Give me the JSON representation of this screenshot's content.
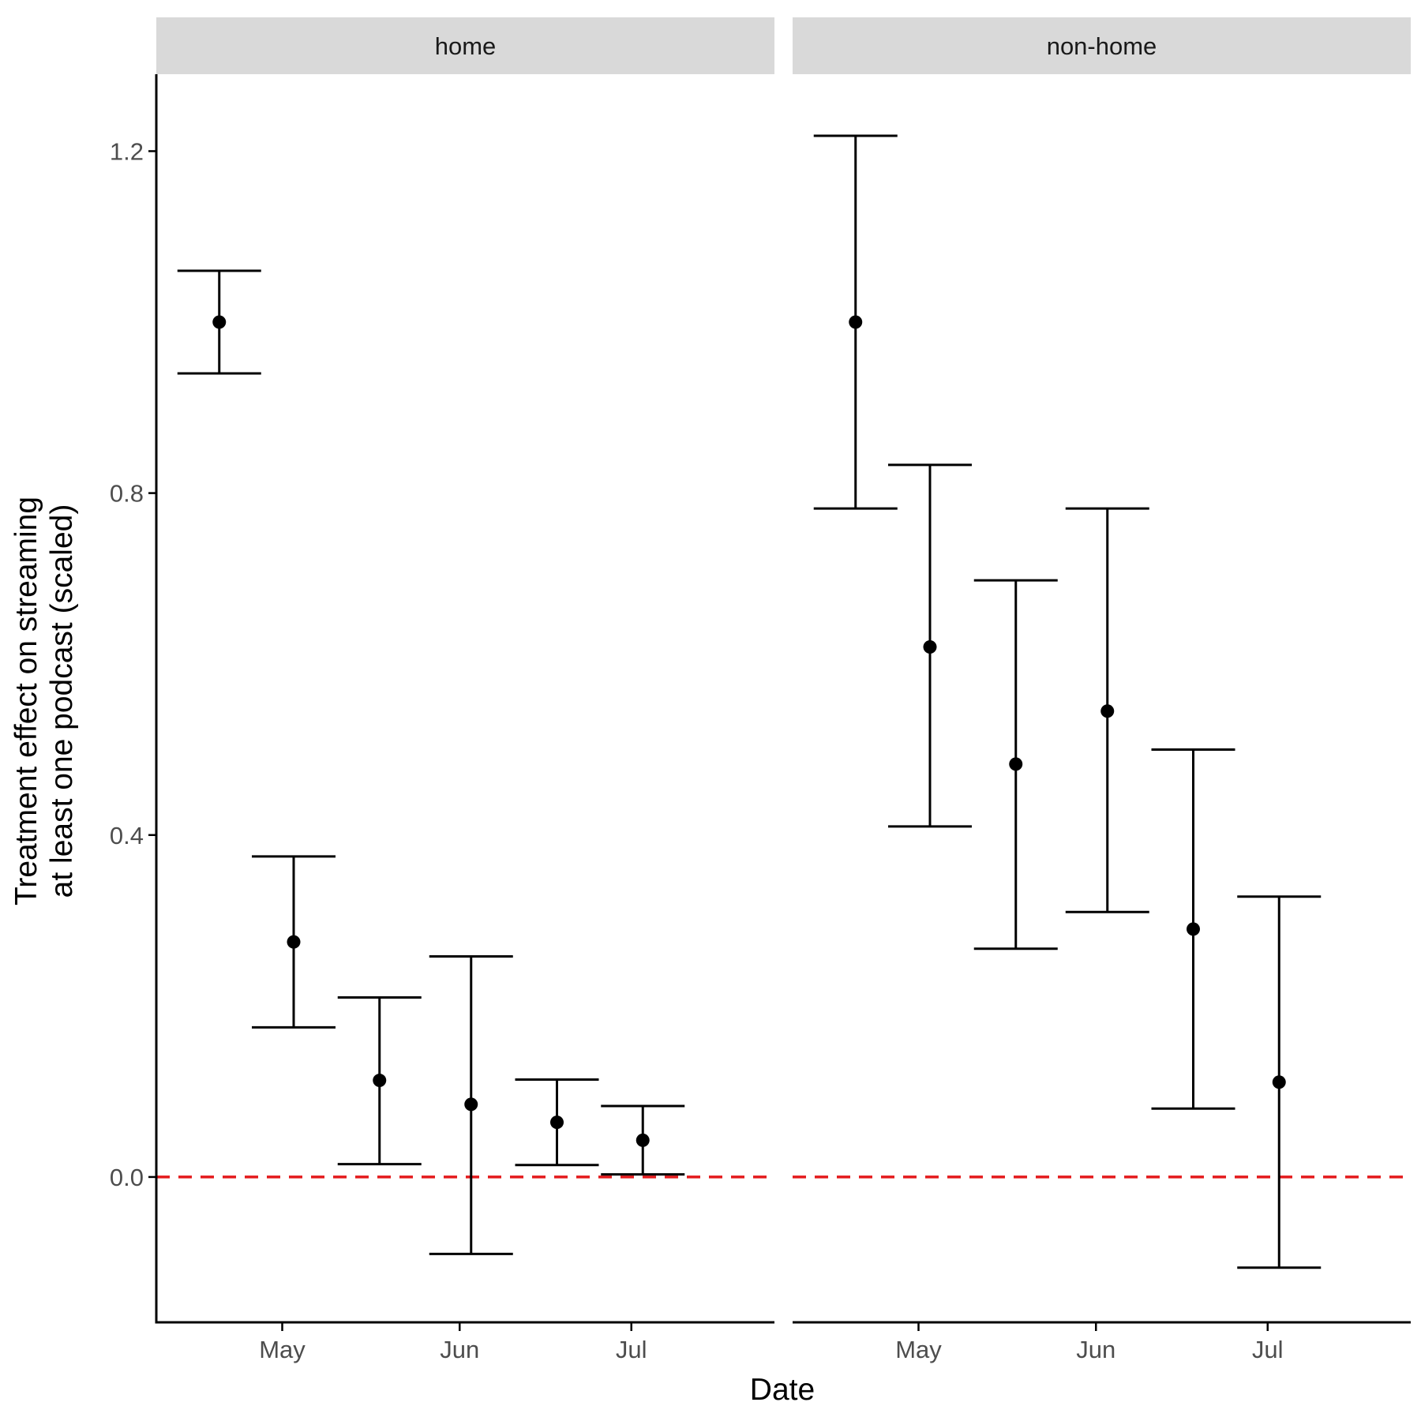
{
  "chart_data": {
    "type": "errorbar",
    "xlabel": "Date",
    "ylabel_lines": [
      "Treatment effect on streaming",
      "at least one podcast (scaled)"
    ],
    "ylim": [
      -0.17,
      1.29
    ],
    "yticks": [
      0.0,
      0.4,
      0.8,
      1.2
    ],
    "ytick_labels": [
      "0.0",
      "0.4",
      "0.8",
      "1.2"
    ],
    "xlim": [
      "2021-04-09",
      "2021-07-26"
    ],
    "xticks": [
      "2021-05-01",
      "2021-06-01",
      "2021-07-01"
    ],
    "xtick_labels": [
      "May",
      "Jun",
      "Jul"
    ],
    "reference_line": {
      "y": 0.0,
      "color": "#e41a1c",
      "style": "dashed"
    },
    "colors": {
      "points": "#000000",
      "strip_bg": "#d9d9d9",
      "axis": "#000000"
    },
    "panels": [
      {
        "name": "home",
        "points": [
          {
            "x": "2021-04-20",
            "y": 1.0,
            "ymin": 0.94,
            "ymax": 1.06
          },
          {
            "x": "2021-05-03",
            "y": 0.275,
            "ymin": 0.175,
            "ymax": 0.375
          },
          {
            "x": "2021-05-18",
            "y": 0.113,
            "ymin": 0.015,
            "ymax": 0.21
          },
          {
            "x": "2021-06-03",
            "y": 0.085,
            "ymin": -0.09,
            "ymax": 0.258
          },
          {
            "x": "2021-06-18",
            "y": 0.064,
            "ymin": 0.014,
            "ymax": 0.114
          },
          {
            "x": "2021-07-03",
            "y": 0.043,
            "ymin": 0.003,
            "ymax": 0.083
          }
        ]
      },
      {
        "name": "non-home",
        "points": [
          {
            "x": "2021-04-20",
            "y": 1.0,
            "ymin": 0.782,
            "ymax": 1.218
          },
          {
            "x": "2021-05-03",
            "y": 0.62,
            "ymin": 0.41,
            "ymax": 0.833
          },
          {
            "x": "2021-05-18",
            "y": 0.483,
            "ymin": 0.267,
            "ymax": 0.698
          },
          {
            "x": "2021-06-03",
            "y": 0.545,
            "ymin": 0.31,
            "ymax": 0.782
          },
          {
            "x": "2021-06-18",
            "y": 0.29,
            "ymin": 0.08,
            "ymax": 0.5
          },
          {
            "x": "2021-07-03",
            "y": 0.111,
            "ymin": -0.106,
            "ymax": 0.328
          }
        ]
      }
    ]
  }
}
